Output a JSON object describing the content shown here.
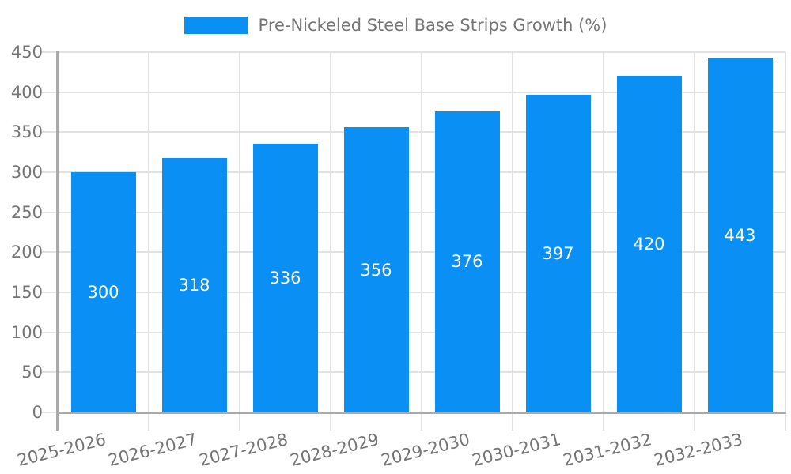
{
  "chart_data": {
    "type": "bar",
    "title": "Pre-Nickeled Steel Base Strips Growth (%)",
    "legend": {
      "position": "top",
      "label": "Pre-Nickeled Steel Base Strips Growth (%)"
    },
    "categories": [
      "2025-2026",
      "2026-2027",
      "2027-2028",
      "2028-2029",
      "2029-2030",
      "2030-2031",
      "2031-2032",
      "2032-2033"
    ],
    "values": [
      300,
      318,
      336,
      356,
      376,
      397,
      420,
      443
    ],
    "ylim": [
      0,
      450
    ],
    "yticks": [
      0,
      50,
      100,
      150,
      200,
      250,
      300,
      350,
      400,
      450
    ],
    "grid": true,
    "value_labels": "inside-center",
    "x_label_rotation_deg": -14,
    "colors": {
      "bar": "#0a8ff4",
      "value_label": "#ffffff",
      "axis_text": "#757575",
      "axis_line": "#aaaaaa",
      "gridline": "#e2e2e2",
      "background": "#ffffff"
    }
  }
}
